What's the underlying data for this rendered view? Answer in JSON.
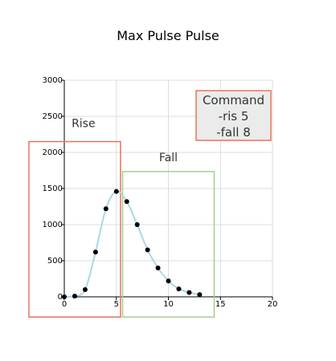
{
  "chart_data": {
    "type": "line",
    "title": "Max Pulse Pulse",
    "xlabel": "",
    "ylabel": "",
    "xlim": [
      0,
      20
    ],
    "ylim": [
      0,
      3000
    ],
    "xticks": [
      0,
      5,
      10,
      15,
      20
    ],
    "yticks": [
      0,
      500,
      1000,
      1500,
      2000,
      2500,
      3000
    ],
    "grid": true,
    "series": [
      {
        "x": [
          0,
          1,
          2,
          3,
          4,
          5,
          6,
          7,
          8,
          9,
          10,
          11,
          12,
          13
        ],
        "y": [
          0,
          10,
          100,
          620,
          1220,
          1460,
          1320,
          1000,
          650,
          400,
          220,
          110,
          60,
          30
        ],
        "line_color": "#a8d8e8",
        "marker_color": "#000000"
      }
    ],
    "annotations": [
      {
        "name": "rise-region",
        "label": "Rise",
        "color": "#e8735f",
        "x_range": [
          -3.4,
          5.4
        ],
        "y_range": [
          -280,
          2150
        ]
      },
      {
        "name": "fall-region",
        "label": "Fall",
        "color": "#a3cf8f",
        "x_range": [
          5.6,
          14.4
        ],
        "y_range": [
          -280,
          1735
        ]
      },
      {
        "name": "command-box",
        "lines": [
          "Command",
          "-ris 5",
          "-fall 8"
        ],
        "border_color": "#e8735f",
        "fill_color": "#ebebeb"
      }
    ]
  }
}
